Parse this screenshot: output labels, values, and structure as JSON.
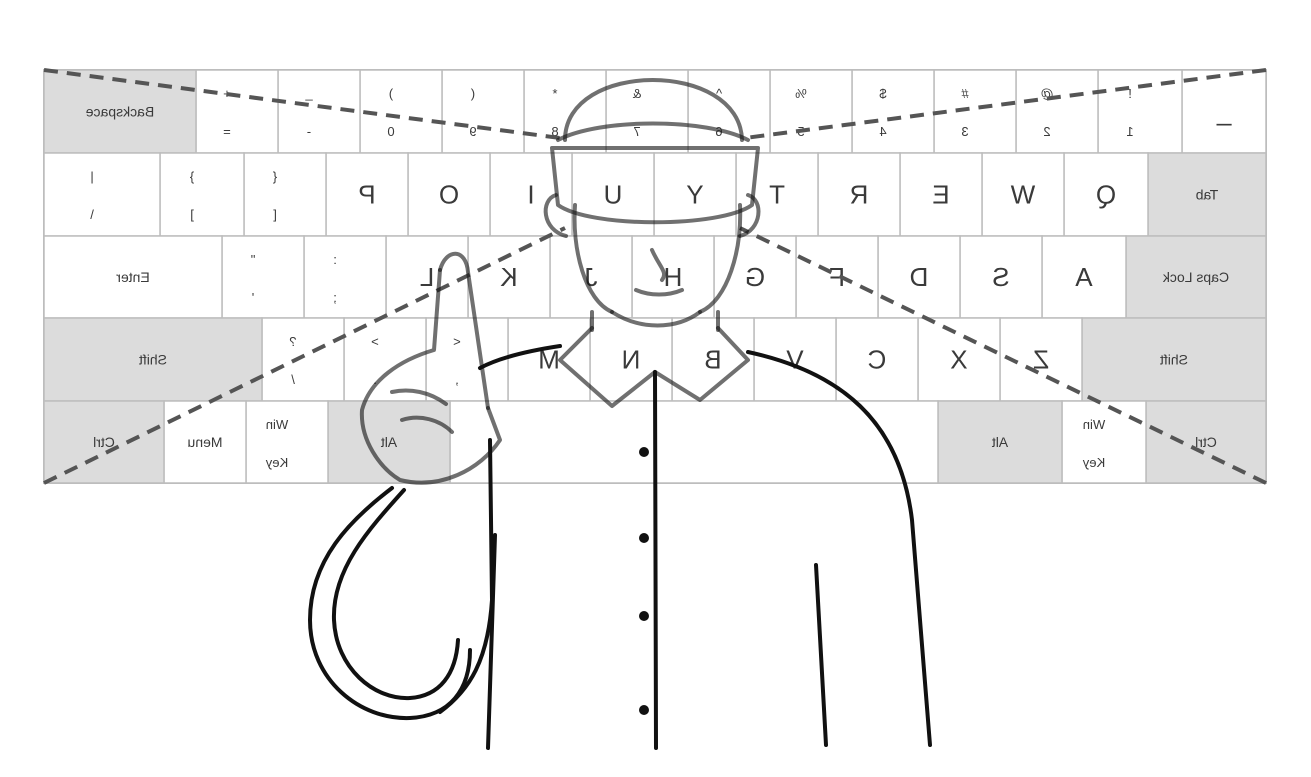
{
  "keyboard": {
    "mirrored": true,
    "colors": {
      "frame": "#bdbdbd",
      "key_fill": "#ffffff",
      "modifier_fill": "#dcdcdc",
      "text": "#3a3a3a"
    },
    "rows": [
      {
        "name": "number-row",
        "keys": [
          {
            "top": "_",
            "bottom": "",
            "mod": false
          },
          {
            "top": "!",
            "bottom": "1",
            "mod": false
          },
          {
            "top": "@",
            "bottom": "2",
            "mod": false
          },
          {
            "top": "#",
            "bottom": "3",
            "mod": false
          },
          {
            "top": "$",
            "bottom": "4",
            "mod": false
          },
          {
            "top": "%",
            "bottom": "5",
            "mod": false
          },
          {
            "top": "^",
            "bottom": "6",
            "mod": false
          },
          {
            "top": "&",
            "bottom": "7",
            "mod": false
          },
          {
            "top": "*",
            "bottom": "8",
            "mod": false
          },
          {
            "top": "(",
            "bottom": "9",
            "mod": false
          },
          {
            "top": ")",
            "bottom": "0",
            "mod": false
          },
          {
            "top": "_",
            "bottom": "-",
            "mod": false
          },
          {
            "top": "+",
            "bottom": "=",
            "mod": false
          },
          {
            "top": "Backspace",
            "bottom": "",
            "mod": true
          }
        ]
      },
      {
        "name": "top-letter-row",
        "keys": [
          {
            "top": "Tab",
            "bottom": "",
            "mod": true
          },
          {
            "top": "Q",
            "bottom": "",
            "mod": false
          },
          {
            "top": "W",
            "bottom": "",
            "mod": false
          },
          {
            "top": "E",
            "bottom": "",
            "mod": false
          },
          {
            "top": "R",
            "bottom": "",
            "mod": false
          },
          {
            "top": "T",
            "bottom": "",
            "mod": false
          },
          {
            "top": "Y",
            "bottom": "",
            "mod": false
          },
          {
            "top": "U",
            "bottom": "",
            "mod": false
          },
          {
            "top": "I",
            "bottom": "",
            "mod": false
          },
          {
            "top": "O",
            "bottom": "",
            "mod": false
          },
          {
            "top": "P",
            "bottom": "",
            "mod": false
          },
          {
            "top": "{",
            "bottom": "[",
            "mod": false
          },
          {
            "top": "}",
            "bottom": "]",
            "mod": false
          },
          {
            "top": "|",
            "bottom": "\\",
            "mod": false
          }
        ]
      },
      {
        "name": "home-row",
        "keys": [
          {
            "top": "Caps Lock",
            "bottom": "",
            "mod": true
          },
          {
            "top": "A",
            "bottom": "",
            "mod": false
          },
          {
            "top": "S",
            "bottom": "",
            "mod": false
          },
          {
            "top": "D",
            "bottom": "",
            "mod": false
          },
          {
            "top": "F",
            "bottom": "",
            "mod": false
          },
          {
            "top": "G",
            "bottom": "",
            "mod": false
          },
          {
            "top": "H",
            "bottom": "",
            "mod": false
          },
          {
            "top": "J",
            "bottom": "",
            "mod": false
          },
          {
            "top": "K",
            "bottom": "",
            "mod": false
          },
          {
            "top": "L",
            "bottom": "",
            "mod": false
          },
          {
            "top": ":",
            "bottom": ";",
            "mod": false
          },
          {
            "top": "\"",
            "bottom": "'",
            "mod": false
          },
          {
            "top": "Enter",
            "bottom": "",
            "mod": false
          }
        ]
      },
      {
        "name": "bottom-letter-row",
        "keys": [
          {
            "top": "Shift",
            "bottom": "",
            "mod": true
          },
          {
            "top": "Z",
            "bottom": "",
            "mod": false
          },
          {
            "top": "X",
            "bottom": "",
            "mod": false
          },
          {
            "top": "C",
            "bottom": "",
            "mod": false
          },
          {
            "top": "V",
            "bottom": "",
            "mod": false
          },
          {
            "top": "B",
            "bottom": "",
            "mod": false
          },
          {
            "top": "N",
            "bottom": "",
            "mod": false
          },
          {
            "top": "M",
            "bottom": "",
            "mod": false
          },
          {
            "top": "<",
            "bottom": ",",
            "mod": false
          },
          {
            "top": ">",
            "bottom": ".",
            "mod": false
          },
          {
            "top": "?",
            "bottom": "/",
            "mod": false
          },
          {
            "top": "Shift",
            "bottom": "",
            "mod": true
          }
        ]
      },
      {
        "name": "space-row",
        "keys": [
          {
            "top": "Ctrl",
            "bottom": "",
            "mod": true
          },
          {
            "top": "Win",
            "bottom": "Key",
            "mod": false
          },
          {
            "top": "Alt",
            "bottom": "",
            "mod": true
          },
          {
            "top": "",
            "bottom": "",
            "mod": false
          },
          {
            "top": "Alt",
            "bottom": "",
            "mod": true
          },
          {
            "top": "Win",
            "bottom": "Key",
            "mod": false
          },
          {
            "top": "Menu",
            "bottom": "",
            "mod": false
          },
          {
            "top": "Ctrl",
            "bottom": "",
            "mod": true
          }
        ]
      }
    ]
  },
  "figure": {
    "description_icon": "person-with-vr-headset-pointing-icon",
    "line_color": "#111111",
    "guide_line_color": "#555555"
  }
}
